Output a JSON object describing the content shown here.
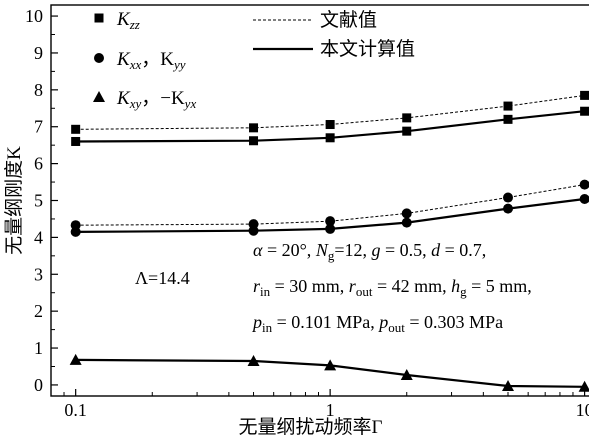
{
  "chart_data": {
    "type": "line",
    "xscale": "log",
    "xlim": [
      0.08,
      10.5
    ],
    "ylim": [
      -0.3,
      10.3
    ],
    "xticks": [
      {
        "value": 0.1,
        "label": "0.1"
      },
      {
        "value": 1,
        "label": "1"
      },
      {
        "value": 10,
        "label": "10"
      }
    ],
    "yticks": [
      {
        "value": 0,
        "label": "0"
      },
      {
        "value": 1,
        "label": "1"
      },
      {
        "value": 2,
        "label": "2"
      },
      {
        "value": 3,
        "label": "3"
      },
      {
        "value": 4,
        "label": "4"
      },
      {
        "value": 5,
        "label": "5"
      },
      {
        "value": 6,
        "label": "6"
      },
      {
        "value": 7,
        "label": "7"
      },
      {
        "value": 8,
        "label": "8"
      },
      {
        "value": 9,
        "label": "9"
      },
      {
        "value": 10,
        "label": "10"
      }
    ],
    "xlabel": "无量纲扰动频率Γ",
    "ylabel": "无量纲刚度K",
    "grid": false,
    "x": [
      0.1,
      0.5,
      1,
      2,
      5,
      10
    ],
    "series": [
      {
        "name": "Kzz (本文计算值)",
        "group": "Kzz",
        "kind": "calculated",
        "marker": "square",
        "style": "solid",
        "values": [
          6.6,
          6.62,
          6.7,
          6.88,
          7.2,
          7.42
        ]
      },
      {
        "name": "Kzz (文献值)",
        "group": "Kzz",
        "kind": "literature",
        "marker": "square",
        "style": "dashed",
        "values": [
          6.93,
          6.97,
          7.06,
          7.24,
          7.56,
          7.85
        ]
      },
      {
        "name": "Kxx, Kyy (本文计算值)",
        "group": "Kxx",
        "kind": "calculated",
        "marker": "circle",
        "style": "solid",
        "values": [
          4.15,
          4.18,
          4.23,
          4.4,
          4.78,
          5.04
        ]
      },
      {
        "name": "Kxx, Kyy (文献值)",
        "group": "Kxx",
        "kind": "literature",
        "marker": "circle",
        "style": "dashed",
        "values": [
          4.33,
          4.36,
          4.44,
          4.65,
          5.08,
          5.43
        ]
      },
      {
        "name": "Kxy, -Kyx",
        "group": "Kxy",
        "kind": "calculated",
        "marker": "triangle",
        "style": "solid",
        "values": [
          0.68,
          0.65,
          0.53,
          0.27,
          -0.03,
          -0.05
        ]
      }
    ],
    "legend": {
      "placement": "top",
      "markers": [
        {
          "marker": "square",
          "label": "K",
          "sub": "zz",
          "tail": ""
        },
        {
          "marker": "circle",
          "label": "K",
          "sub": "xx",
          "tail": "，K",
          "sub2": "yy"
        },
        {
          "marker": "triangle",
          "label": "K",
          "sub": "xy",
          "tail": "，−K",
          "sub2": "yx"
        }
      ],
      "lines": [
        {
          "style": "dashed",
          "label": "文献值"
        },
        {
          "style": "solid",
          "label": "本文计算值"
        }
      ]
    },
    "annotations": {
      "lambda": "Λ=14.4",
      "line1": "α = 20°, Ng=12, g = 0.5, d = 0.7,",
      "line2": "rin = 30 mm, rout = 42 mm, hg = 5 mm,",
      "line3": "pin = 0.101 MPa,  pout = 0.303 MPa"
    }
  }
}
